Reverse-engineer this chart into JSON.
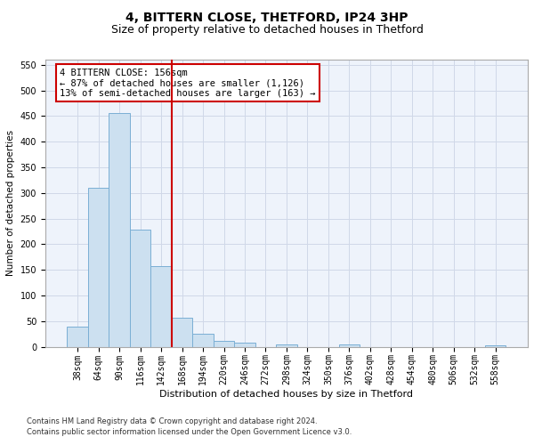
{
  "title": "4, BITTERN CLOSE, THETFORD, IP24 3HP",
  "subtitle": "Size of property relative to detached houses in Thetford",
  "xlabel": "Distribution of detached houses by size in Thetford",
  "ylabel": "Number of detached properties",
  "footnote1": "Contains HM Land Registry data © Crown copyright and database right 2024.",
  "footnote2": "Contains public sector information licensed under the Open Government Licence v3.0.",
  "bar_labels": [
    "38sqm",
    "64sqm",
    "90sqm",
    "116sqm",
    "142sqm",
    "168sqm",
    "194sqm",
    "220sqm",
    "246sqm",
    "272sqm",
    "298sqm",
    "324sqm",
    "350sqm",
    "376sqm",
    "402sqm",
    "428sqm",
    "454sqm",
    "480sqm",
    "506sqm",
    "532sqm",
    "558sqm"
  ],
  "bar_values": [
    40,
    310,
    455,
    228,
    158,
    57,
    25,
    12,
    8,
    0,
    5,
    0,
    0,
    4,
    0,
    0,
    0,
    0,
    0,
    0,
    3
  ],
  "bar_color": "#cce0f0",
  "bar_edge_color": "#7aafd4",
  "vline_x": 4.5,
  "vline_color": "#cc0000",
  "annotation_text": "4 BITTERN CLOSE: 156sqm\n← 87% of detached houses are smaller (1,126)\n13% of semi-detached houses are larger (163) →",
  "annotation_box_color": "#ffffff",
  "annotation_box_edge": "#cc0000",
  "ylim": [
    0,
    560
  ],
  "yticks": [
    0,
    50,
    100,
    150,
    200,
    250,
    300,
    350,
    400,
    450,
    500,
    550
  ],
  "grid_color": "#d0d8e8",
  "background_color": "#eef3fb",
  "fig_bg_color": "#ffffff",
  "title_fontsize": 10,
  "subtitle_fontsize": 9,
  "ylabel_fontsize": 7.5,
  "xlabel_fontsize": 8,
  "tick_fontsize": 7,
  "annot_fontsize": 7.5,
  "footnote_fontsize": 6
}
